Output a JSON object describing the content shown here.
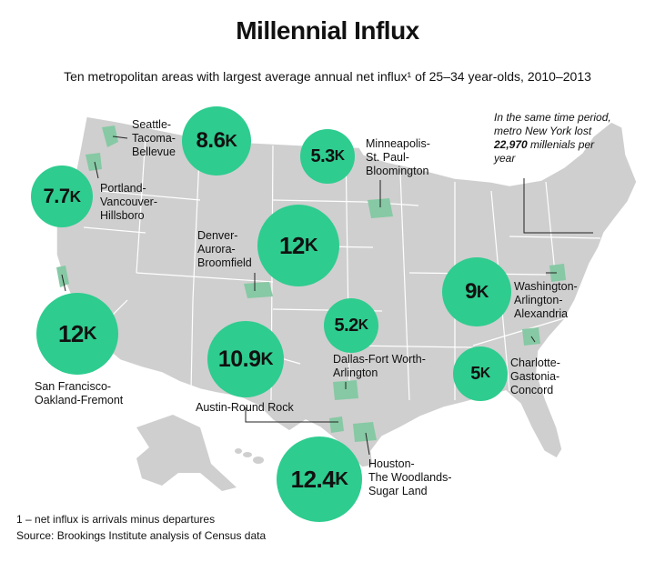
{
  "title": "Millennial Influx",
  "subtitle": "Ten metropolitan areas with largest average annual net influx¹ of 25–34 year-olds, 2010–2013",
  "colors": {
    "bubble": "#2ecc8f",
    "metro": "#86c9a4",
    "land": "#cfcfcf",
    "border": "#ffffff"
  },
  "metros": [
    {
      "name": "Seattle-\nTacoma-\nBellevue",
      "value": "8.6",
      "unit": "K"
    },
    {
      "name": "Portland-\nVancouver-\nHillsboro",
      "value": "7.7",
      "unit": "K"
    },
    {
      "name": "San Francisco-\nOakland-Fremont",
      "value": "12",
      "unit": "K"
    },
    {
      "name": "Minneapolis-\nSt. Paul-\nBloomington",
      "value": "5.3",
      "unit": "K"
    },
    {
      "name": "Denver-\nAurora-\nBroomfield",
      "value": "12",
      "unit": "K"
    },
    {
      "name": "Austin-Round Rock",
      "value": "10.9",
      "unit": "K"
    },
    {
      "name": "Dallas-Fort Worth-\nArlington",
      "value": "5.2",
      "unit": "K"
    },
    {
      "name": "Houston-\nThe Woodlands-\nSugar Land",
      "value": "12.4",
      "unit": "K"
    },
    {
      "name": "Washington-\nArlington-\nAlexandria",
      "value": "9",
      "unit": "K"
    },
    {
      "name": "Charlotte-\nGastonia-\nConcord",
      "value": "5",
      "unit": "K"
    }
  ],
  "note": {
    "line1": "In the same time period, metro New York lost ",
    "amount": "22,970",
    "line2": " millenials per year"
  },
  "footnote": "1 – net influx is arrivals minus departures",
  "source": "Source: Brookings Institute analysis of Census data"
}
